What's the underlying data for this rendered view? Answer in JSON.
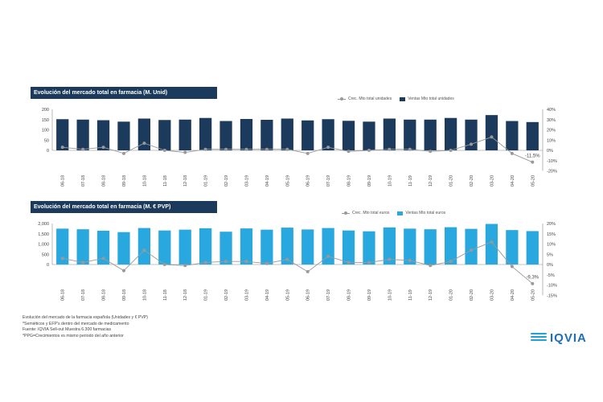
{
  "chart_data": [
    {
      "type": "bar",
      "title": "Evolución del mercado total en farmacia (M. Unid)",
      "categories": [
        "06-18",
        "07-18",
        "08-18",
        "09-18",
        "10-18",
        "11-18",
        "12-18",
        "01-19",
        "02-19",
        "03-19",
        "04-19",
        "05-19",
        "06-19",
        "07-19",
        "08-19",
        "09-19",
        "10-19",
        "11-19",
        "12-19",
        "01-20",
        "02-20",
        "03-20",
        "04-20",
        "05-20"
      ],
      "series": [
        {
          "name": "Ventas Mto total unidades",
          "type": "bar",
          "axis": "left",
          "color": "#1b3a5c",
          "values": [
            152,
            150,
            147,
            140,
            155,
            148,
            150,
            158,
            143,
            153,
            149,
            155,
            146,
            152,
            144,
            140,
            155,
            150,
            150,
            158,
            150,
            172,
            143,
            138
          ]
        },
        {
          "name": "Crec. Mto total unidades",
          "type": "line",
          "axis": "right",
          "color": "#999999",
          "values": [
            3,
            1,
            3,
            -3,
            7,
            0,
            -2,
            1,
            1,
            1,
            1,
            1,
            -3,
            3,
            -1,
            0,
            1,
            1,
            -1,
            0,
            6,
            13,
            -3,
            -11.5
          ]
        }
      ],
      "y_left": {
        "ticks": [
          0,
          50,
          100,
          150,
          200
        ],
        "tick_labels": [
          "0",
          "50",
          "100",
          "150",
          "200"
        ],
        "range": [
          0,
          200
        ]
      },
      "y_right": {
        "ticks": [
          -20,
          -10,
          0,
          10,
          20,
          30,
          40
        ],
        "tick_labels": [
          "-20%",
          "-10%",
          "0%",
          "10%",
          "20%",
          "30%",
          "40%"
        ],
        "range": [
          -20,
          40
        ]
      },
      "annotation": {
        "index": 23,
        "text": "-11,5%"
      },
      "legend": [
        "Crec. Mto total unidades",
        "Ventas Mto total unidades"
      ],
      "legend_position": "top-right"
    },
    {
      "type": "bar",
      "title": "Evolución del mercado total en farmacia (M. € PVP)",
      "categories": [
        "06-18",
        "07-18",
        "08-18",
        "09-18",
        "10-18",
        "11-18",
        "12-18",
        "01-19",
        "02-19",
        "03-19",
        "04-19",
        "05-19",
        "06-19",
        "07-19",
        "08-19",
        "09-19",
        "10-19",
        "11-19",
        "12-19",
        "01-20",
        "02-20",
        "03-20",
        "04-20",
        "05-20"
      ],
      "series": [
        {
          "name": "Ventas Mto total euros",
          "type": "bar",
          "axis": "left",
          "color": "#29a8e0",
          "values": [
            1750,
            1720,
            1650,
            1580,
            1780,
            1660,
            1700,
            1770,
            1600,
            1760,
            1700,
            1800,
            1710,
            1780,
            1660,
            1620,
            1810,
            1750,
            1720,
            1820,
            1740,
            1980,
            1680,
            1630
          ]
        },
        {
          "name": "Crec. Mto total euros",
          "type": "line",
          "axis": "right",
          "color": "#999999",
          "values": [
            3,
            1,
            3,
            -3,
            7,
            0,
            -0.5,
            1,
            1.5,
            1.5,
            0.5,
            2.5,
            -3.5,
            4,
            1,
            1,
            2.5,
            2,
            -0.5,
            1.5,
            7,
            11,
            -1,
            -9.3
          ]
        }
      ],
      "y_left": {
        "ticks": [
          0,
          500,
          1000,
          1500,
          2000
        ],
        "tick_labels": [
          "0",
          "500",
          "1,000",
          "1,500",
          "2,000"
        ],
        "range": [
          0,
          2000
        ]
      },
      "y_right": {
        "ticks": [
          -15,
          -10,
          -5,
          0,
          5,
          10,
          15,
          20
        ],
        "tick_labels": [
          "-15%",
          "-10%",
          "-5%",
          "0%",
          "5%",
          "10%",
          "15%",
          "20%"
        ],
        "range": [
          -15,
          20
        ]
      },
      "annotation": {
        "index": 23,
        "text": "-9,3%"
      },
      "legend": [
        "Crec. Mto total euros",
        "Ventas Mto total euros"
      ],
      "legend_position": "top-right"
    }
  ],
  "notes": [
    "Evolución del mercado de la farmacia española (Unidades y € PVP)",
    "*Semiéticos y EFP's dentro del mercado de medicamento",
    "Fuente: IQVIA Sell-out Muestra 6.300 farmacias",
    "*PPG=Crecimientos vs mismo periodo del año anterior"
  ],
  "logo": {
    "text": "IQVIA"
  }
}
